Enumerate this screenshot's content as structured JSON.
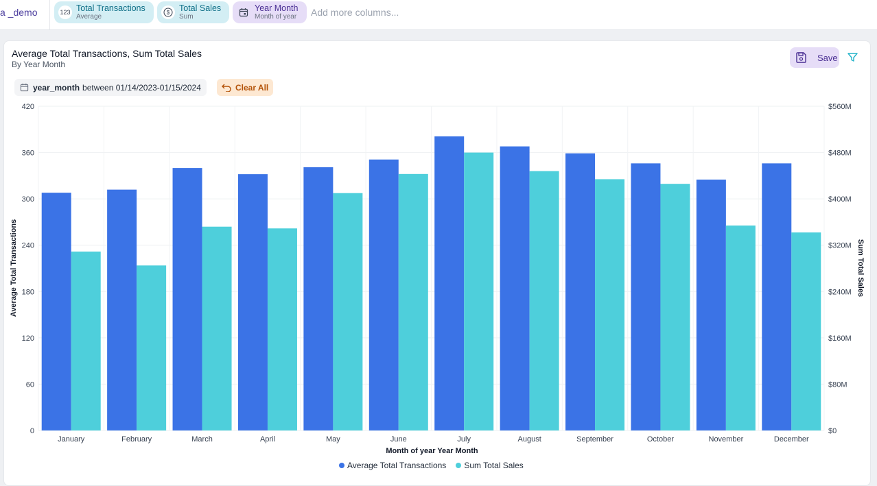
{
  "topbar": {
    "source_label": "a _demo",
    "chips": [
      {
        "title": "Total Transactions",
        "sub": "Average",
        "icon": "123"
      },
      {
        "title": "Total Sales",
        "sub": "Sum",
        "icon": "dollar-icon"
      },
      {
        "title": "Year Month",
        "sub": "Month of year",
        "icon": "calendar-icon"
      }
    ],
    "add_more": "Add more columns..."
  },
  "card": {
    "title": "Average Total Transactions, Sum Total Sales",
    "subtitle": "By Year Month",
    "save_label": "Save",
    "filter": {
      "field": "year_month",
      "op": "between",
      "value": "01/14/2023-01/15/2024"
    },
    "clear_all": "Clear All"
  },
  "colors": {
    "series1": "#3b73e6",
    "series2": "#4ecfdb"
  },
  "chart_data": {
    "type": "bar",
    "xlabel": "Month of year Year Month",
    "ylabel_left": "Average Total Transactions",
    "ylabel_right": "Sum Total Sales",
    "ylim_left": [
      0,
      420
    ],
    "ylim_right": [
      0,
      560
    ],
    "yticks_left": [
      "0",
      "60",
      "120",
      "180",
      "240",
      "300",
      "360",
      "420"
    ],
    "yticks_right": [
      "$0",
      "$80M",
      "$160M",
      "$240M",
      "$320M",
      "$400M",
      "$480M",
      "$560M"
    ],
    "categories": [
      "January",
      "February",
      "March",
      "April",
      "May",
      "June",
      "July",
      "August",
      "September",
      "October",
      "November",
      "December"
    ],
    "series": [
      {
        "name": "Average Total Transactions",
        "axis": "left",
        "values": [
          308,
          312,
          340,
          332,
          341,
          351,
          381,
          368,
          359,
          346,
          325,
          346
        ]
      },
      {
        "name": "Sum Total Sales",
        "axis": "right",
        "values": [
          309,
          285,
          352,
          349,
          410,
          443,
          480,
          448,
          434,
          426,
          354,
          342
        ]
      }
    ],
    "grid": true,
    "legend": "bottom-center"
  }
}
